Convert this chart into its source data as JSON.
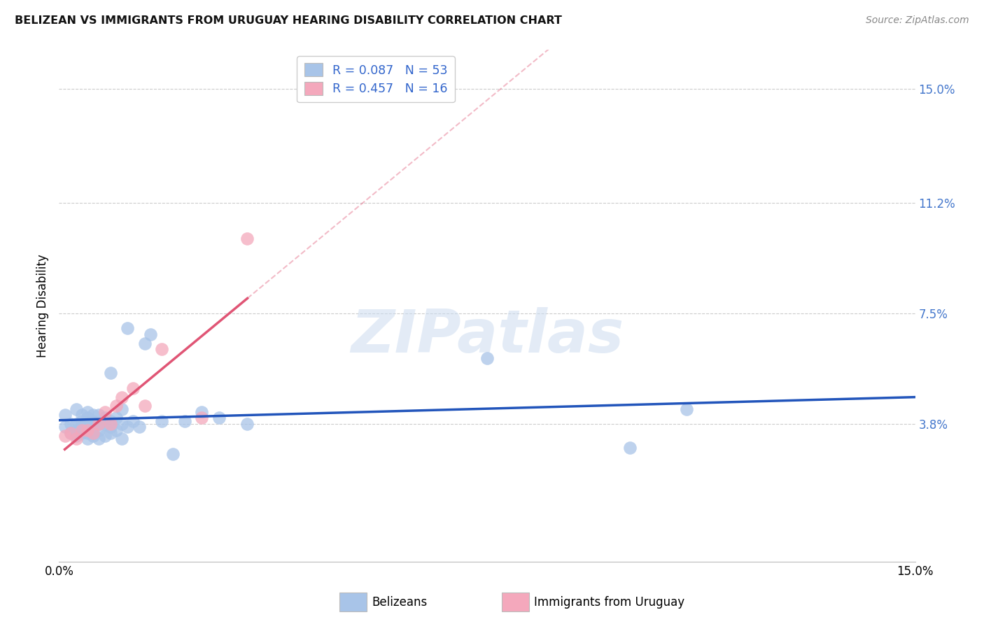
{
  "title": "BELIZEAN VS IMMIGRANTS FROM URUGUAY HEARING DISABILITY CORRELATION CHART",
  "source": "Source: ZipAtlas.com",
  "ylabel": "Hearing Disability",
  "xlim": [
    0.0,
    0.15
  ],
  "ylim": [
    -0.008,
    0.163
  ],
  "y_ticks": [
    0.038,
    0.075,
    0.112,
    0.15
  ],
  "y_tick_labels": [
    "3.8%",
    "7.5%",
    "11.2%",
    "15.0%"
  ],
  "x_ticks": [
    0.0,
    0.03,
    0.06,
    0.09,
    0.12,
    0.15
  ],
  "x_tick_labels": [
    "0.0%",
    "",
    "",
    "",
    "",
    "15.0%"
  ],
  "belizean_R": 0.087,
  "belizean_N": 53,
  "uruguay_R": 0.457,
  "uruguay_N": 16,
  "legend_label_1": "Belizeans",
  "legend_label_2": "Immigrants from Uruguay",
  "belizean_color": "#a8c4e8",
  "belizean_line_color": "#2255bb",
  "uruguay_color": "#f4a8bc",
  "uruguay_line_color": "#e05575",
  "watermark_color": "#ccdcf0",
  "title_fontsize": 12,
  "tick_fontsize": 12,
  "belizean_x": [
    0.001,
    0.001,
    0.002,
    0.002,
    0.003,
    0.003,
    0.003,
    0.003,
    0.004,
    0.004,
    0.004,
    0.004,
    0.005,
    0.005,
    0.005,
    0.005,
    0.005,
    0.006,
    0.006,
    0.006,
    0.006,
    0.006,
    0.007,
    0.007,
    0.007,
    0.007,
    0.008,
    0.008,
    0.008,
    0.009,
    0.009,
    0.009,
    0.009,
    0.01,
    0.01,
    0.011,
    0.011,
    0.011,
    0.012,
    0.012,
    0.013,
    0.014,
    0.015,
    0.016,
    0.018,
    0.02,
    0.022,
    0.025,
    0.028,
    0.033,
    0.075,
    0.1,
    0.11
  ],
  "belizean_y": [
    0.037,
    0.041,
    0.035,
    0.038,
    0.034,
    0.036,
    0.038,
    0.043,
    0.035,
    0.037,
    0.039,
    0.041,
    0.033,
    0.035,
    0.037,
    0.04,
    0.042,
    0.034,
    0.035,
    0.037,
    0.039,
    0.041,
    0.033,
    0.036,
    0.038,
    0.041,
    0.034,
    0.038,
    0.04,
    0.035,
    0.037,
    0.039,
    0.055,
    0.036,
    0.04,
    0.033,
    0.038,
    0.043,
    0.037,
    0.07,
    0.039,
    0.037,
    0.065,
    0.068,
    0.039,
    0.028,
    0.039,
    0.042,
    0.04,
    0.038,
    0.06,
    0.03,
    0.043
  ],
  "uruguay_x": [
    0.001,
    0.002,
    0.003,
    0.004,
    0.005,
    0.006,
    0.007,
    0.008,
    0.009,
    0.01,
    0.011,
    0.013,
    0.015,
    0.018,
    0.025,
    0.033
  ],
  "uruguay_y": [
    0.034,
    0.035,
    0.033,
    0.036,
    0.036,
    0.035,
    0.038,
    0.042,
    0.038,
    0.044,
    0.047,
    0.05,
    0.044,
    0.063,
    0.04,
    0.1
  ]
}
